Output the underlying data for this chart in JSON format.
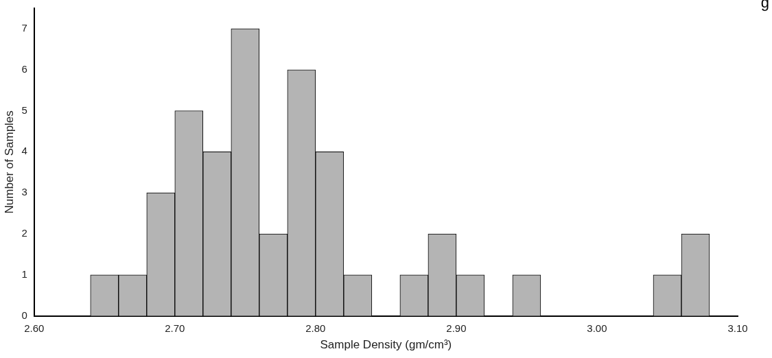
{
  "chart_data": {
    "type": "histogram",
    "xlabel": "Sample Density (gm/cm³)",
    "ylabel": "Number of Samples",
    "bins": [
      2.64,
      2.66,
      2.68,
      2.7,
      2.72,
      2.74,
      2.76,
      2.78,
      2.8,
      2.82,
      2.84,
      2.86,
      2.88,
      2.9,
      2.92,
      2.94,
      2.96,
      2.98,
      3.0,
      3.02,
      3.04,
      3.06,
      3.08
    ],
    "values": [
      1,
      1,
      3,
      5,
      4,
      7,
      2,
      6,
      4,
      1,
      0,
      1,
      2,
      1,
      0,
      1,
      0,
      0,
      0,
      0,
      1,
      2
    ],
    "color": "#b4b4b4",
    "xlim": [
      2.6,
      3.1
    ],
    "xticks": [
      {
        "value": 2.6,
        "label": "2.60"
      },
      {
        "value": 2.7,
        "label": "2.70"
      },
      {
        "value": 2.8,
        "label": "2.80"
      },
      {
        "value": 2.9,
        "label": "2.90"
      },
      {
        "value": 3.0,
        "label": "3.00"
      },
      {
        "value": 3.1,
        "label": "3.10"
      }
    ],
    "ylim": [
      0,
      7.5
    ],
    "yticks": [
      0,
      1,
      2,
      3,
      4,
      5,
      6,
      7
    ],
    "grid": false,
    "legend": false,
    "annotations": [
      "g"
    ]
  }
}
